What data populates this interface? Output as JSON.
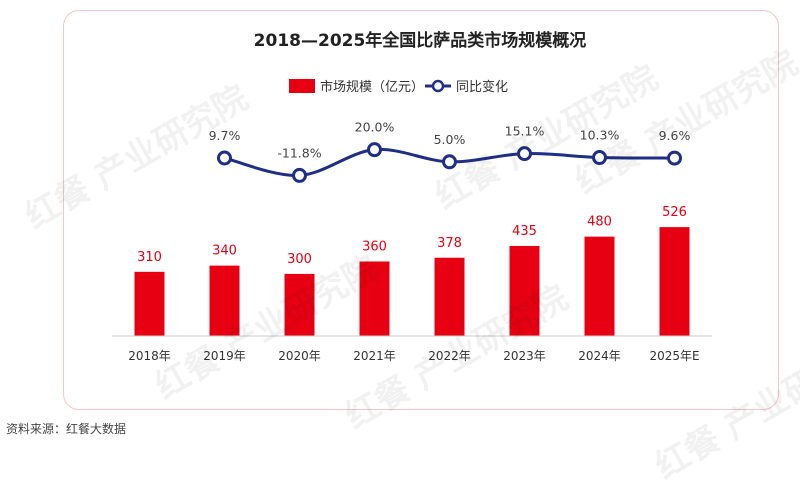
{
  "source_note": "资料来源：红餐大数据",
  "watermark_text": "红餐 产业研究院",
  "chart_data": {
    "type": "bar",
    "title": "2018—2025年全国比萨品类市场规模概况",
    "categories": [
      "2018年",
      "2019年",
      "2020年",
      "2021年",
      "2022年",
      "2023年",
      "2024年",
      "2025年E"
    ],
    "series": [
      {
        "name": "市场规模（亿元）",
        "type": "bar",
        "color": "#e60012",
        "values": [
          310,
          340,
          300,
          360,
          378,
          435,
          480,
          526
        ],
        "labels": [
          "310",
          "340",
          "300",
          "360",
          "378",
          "435",
          "480",
          "526"
        ]
      },
      {
        "name": "同比变化",
        "type": "line",
        "color": "#1f2f86",
        "values": [
          null,
          9.7,
          -11.8,
          20.0,
          5.0,
          15.1,
          10.3,
          9.6
        ],
        "labels": [
          "",
          "9.7%",
          "-11.8%",
          "20.0%",
          "5.0%",
          "15.1%",
          "10.3%",
          "9.6%"
        ]
      }
    ],
    "legend_position": "top-center",
    "grid": false
  }
}
